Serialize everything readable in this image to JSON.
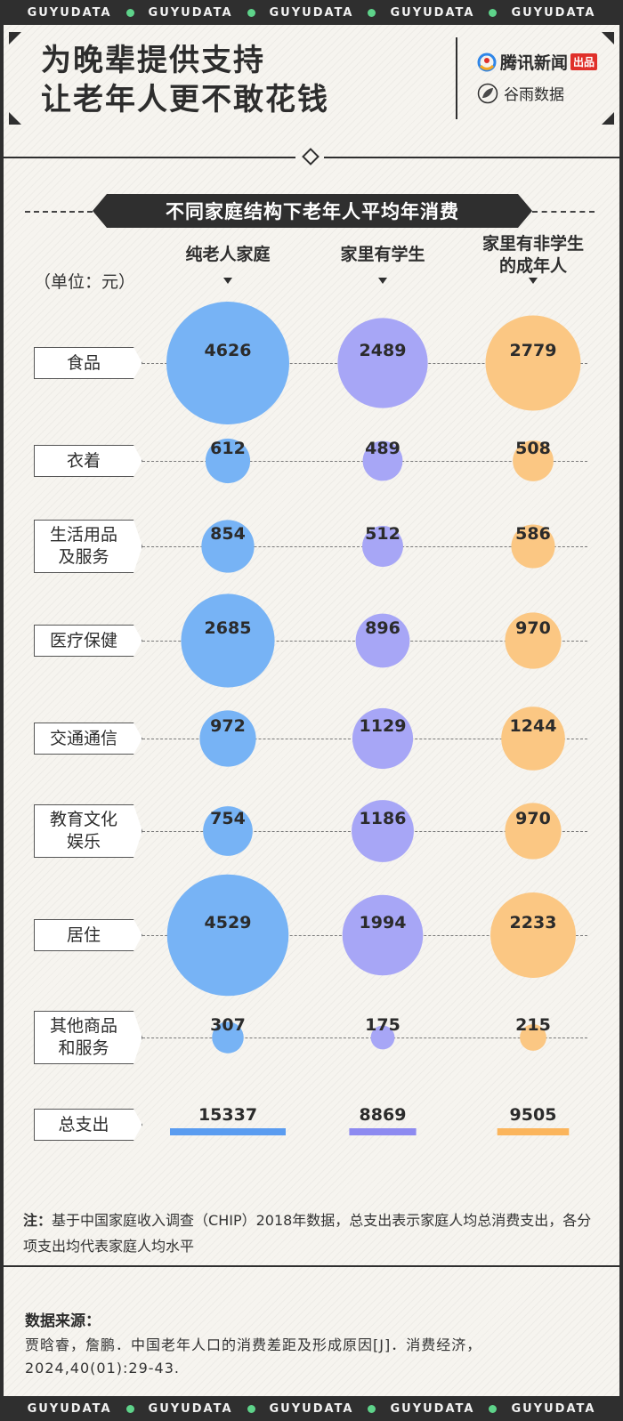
{
  "strip_text": "GUYUDATA",
  "header": {
    "title_line1": "为晚辈提供支持",
    "title_line2": "让老年人更不敢花钱",
    "logo_tencent": "腾讯新闻",
    "logo_tencent_badge": "出品",
    "logo_guyu": "谷雨数据"
  },
  "chart_title": "不同家庭结构下老年人平均年消费",
  "unit_label": "（单位：元）",
  "chart_data": {
    "type": "bubble-table",
    "columns": [
      "纯老人家庭",
      "家里有学生",
      "家里有非学生的成年人"
    ],
    "column_display": [
      [
        "纯老人家庭"
      ],
      [
        "家里有学生"
      ],
      [
        "家里有非学生",
        "的成年人"
      ]
    ],
    "colors": [
      "#77b3f5",
      "#a7a6f6",
      "#fbc783"
    ],
    "total_colors": [
      "#5a9cf0",
      "#8d8af0",
      "#fbb55c"
    ],
    "rows": [
      {
        "label": [
          "食品"
        ],
        "values": [
          4626,
          2489,
          2779
        ]
      },
      {
        "label": [
          "衣着"
        ],
        "values": [
          612,
          489,
          508
        ]
      },
      {
        "label": [
          "生活用品",
          "及服务"
        ],
        "values": [
          854,
          512,
          586
        ]
      },
      {
        "label": [
          "医疗保健"
        ],
        "values": [
          2685,
          896,
          970
        ]
      },
      {
        "label": [
          "交通通信"
        ],
        "values": [
          972,
          1129,
          1244
        ]
      },
      {
        "label": [
          "教育文化",
          "娱乐"
        ],
        "values": [
          754,
          1186,
          970
        ]
      },
      {
        "label": [
          "居住"
        ],
        "values": [
          4529,
          1994,
          2233
        ]
      },
      {
        "label": [
          "其他商品",
          "和服务"
        ],
        "values": [
          307,
          175,
          215
        ]
      }
    ],
    "total": {
      "label": "总支出",
      "values": [
        15337,
        8869,
        9505
      ]
    }
  },
  "note": {
    "prefix": "注：",
    "text": "基于中国家庭收入调查（CHIP）2018年数据，总支出表示家庭人均总消费支出，各分项支出均代表家庭人均水平"
  },
  "source": {
    "title": "数据来源：",
    "text": "贾晗睿，詹鹏．中国老年人口的消费差距及形成原因[J]．消费经济，2024,40(01):29-43."
  }
}
